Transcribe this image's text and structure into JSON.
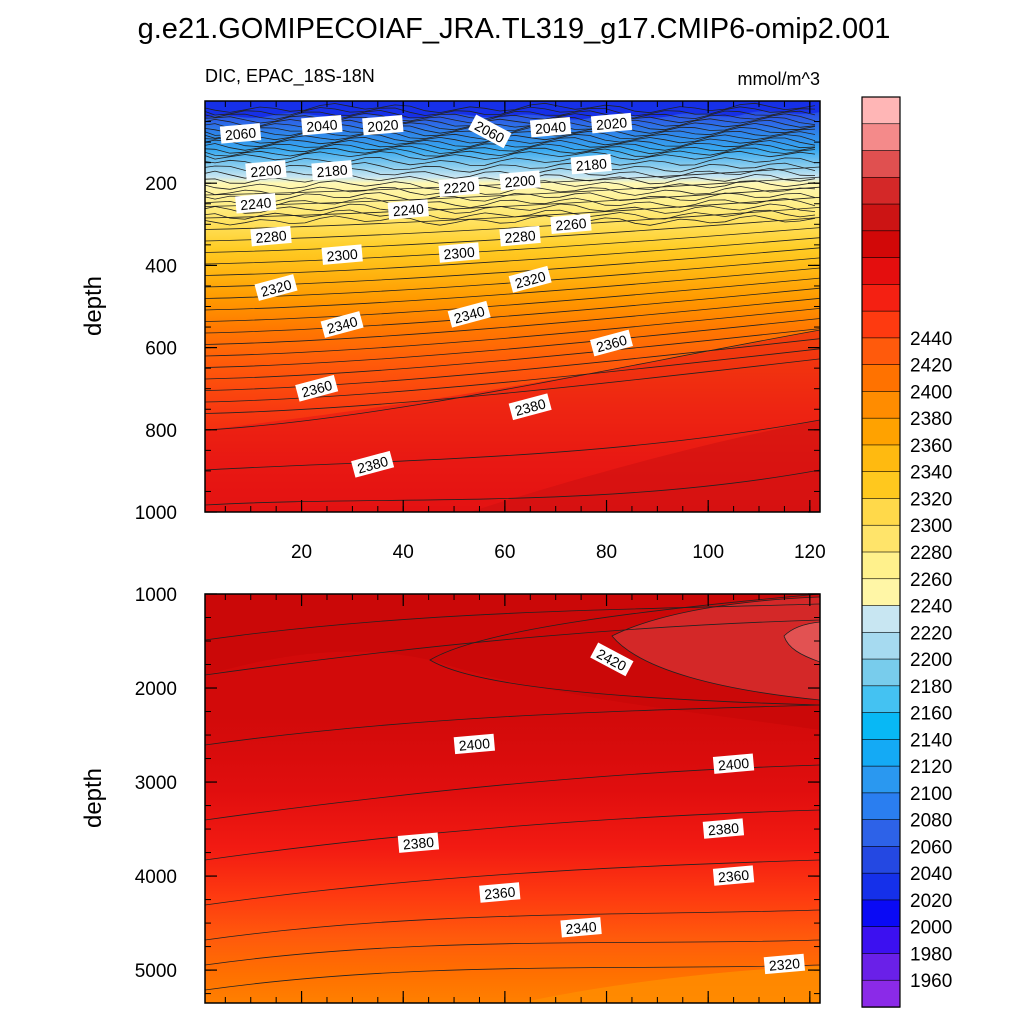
{
  "title": "g.e21.GOMIPECOIAF_JRA.TL319_g17.CMIP6-omip2.001",
  "chart_data": {
    "type": "heatmap",
    "variable": "DIC, EPAC_18S-18N",
    "units": "mmol/m^3",
    "x_ticks": [
      "20",
      "40",
      "60",
      "80",
      "100",
      "120"
    ],
    "xlim": [
      1,
      122
    ],
    "panels": [
      {
        "name": "upper",
        "ylabel": "depth",
        "ylim": [
          0,
          1000
        ],
        "y_ticks": [
          "200",
          "400",
          "600",
          "800",
          "1000"
        ],
        "contour_labels": [
          {
            "text": "2060",
            "x": 8,
            "depth": 80
          },
          {
            "text": "2040",
            "x": 24,
            "depth": 60
          },
          {
            "text": "2020",
            "x": 36,
            "depth": 60
          },
          {
            "text": "2060",
            "x": 57,
            "depth": 75
          },
          {
            "text": "2040",
            "x": 69,
            "depth": 65
          },
          {
            "text": "2020",
            "x": 81,
            "depth": 55
          },
          {
            "text": "2200",
            "x": 13,
            "depth": 170
          },
          {
            "text": "2180",
            "x": 26,
            "depth": 170
          },
          {
            "text": "2220",
            "x": 51,
            "depth": 210
          },
          {
            "text": "2200",
            "x": 63,
            "depth": 195
          },
          {
            "text": "2180",
            "x": 77,
            "depth": 155
          },
          {
            "text": "2240",
            "x": 11,
            "depth": 250
          },
          {
            "text": "2240",
            "x": 41,
            "depth": 265
          },
          {
            "text": "2260",
            "x": 73,
            "depth": 300
          },
          {
            "text": "2280",
            "x": 14,
            "depth": 330
          },
          {
            "text": "2280",
            "x": 63,
            "depth": 330
          },
          {
            "text": "2300",
            "x": 28,
            "depth": 375
          },
          {
            "text": "2300",
            "x": 51,
            "depth": 370
          },
          {
            "text": "2320",
            "x": 15,
            "depth": 455
          },
          {
            "text": "2320",
            "x": 65,
            "depth": 435
          },
          {
            "text": "2340",
            "x": 28,
            "depth": 545
          },
          {
            "text": "2340",
            "x": 53,
            "depth": 520
          },
          {
            "text": "2360",
            "x": 81,
            "depth": 590
          },
          {
            "text": "2360",
            "x": 23,
            "depth": 700
          },
          {
            "text": "2380",
            "x": 65,
            "depth": 745
          },
          {
            "text": "2380",
            "x": 34,
            "depth": 885
          }
        ]
      },
      {
        "name": "lower",
        "ylabel": "depth",
        "ylim": [
          1000,
          5350
        ],
        "y_ticks": [
          "1000",
          "2000",
          "3000",
          "4000",
          "5000"
        ],
        "contour_labels": [
          {
            "text": "2420",
            "x": 81,
            "depth": 1700
          },
          {
            "text": "2400",
            "x": 54,
            "depth": 2600
          },
          {
            "text": "2400",
            "x": 105,
            "depth": 2810
          },
          {
            "text": "2380",
            "x": 43,
            "depth": 3650
          },
          {
            "text": "2380",
            "x": 103,
            "depth": 3500
          },
          {
            "text": "2360",
            "x": 59,
            "depth": 4180
          },
          {
            "text": "2360",
            "x": 105,
            "depth": 4000
          },
          {
            "text": "2340",
            "x": 75,
            "depth": 4550
          },
          {
            "text": "2320",
            "x": 115,
            "depth": 4940
          }
        ]
      }
    ],
    "colorbar": {
      "levels": [
        1960,
        1980,
        2000,
        2020,
        2040,
        2060,
        2080,
        2100,
        2120,
        2140,
        2160,
        2180,
        2200,
        2220,
        2240,
        2260,
        2280,
        2300,
        2320,
        2340,
        2360,
        2380,
        2400,
        2420,
        2440
      ],
      "colors": [
        "#8b2ae8",
        "#6a20e8",
        "#3c10f0",
        "#0a0af5",
        "#1530ea",
        "#2448e2",
        "#2d62e8",
        "#2a7ef0",
        "#2a98f0",
        "#14aaf5",
        "#08b8f5",
        "#44c2f2",
        "#78ccec",
        "#a6daf0",
        "#c8e6f2",
        "#fff6a6",
        "#fff18c",
        "#ffe46a",
        "#ffd94a",
        "#ffc81e",
        "#ffba10",
        "#ffa200",
        "#ff8c00",
        "#ff7200",
        "#ff5a0c",
        "#fe3a10",
        "#f42012",
        "#e40e0e",
        "#d20808",
        "#cc1414",
        "#d42828",
        "#e05050",
        "#f48a8a",
        "#ffb6b6"
      ],
      "label_values": [
        "1960",
        "1980",
        "2000",
        "2020",
        "2040",
        "2060",
        "2080",
        "2100",
        "2120",
        "2140",
        "2160",
        "2180",
        "2200",
        "2220",
        "2240",
        "2260",
        "2280",
        "2300",
        "2320",
        "2340",
        "2360",
        "2380",
        "2400",
        "2420",
        "2440"
      ]
    }
  }
}
